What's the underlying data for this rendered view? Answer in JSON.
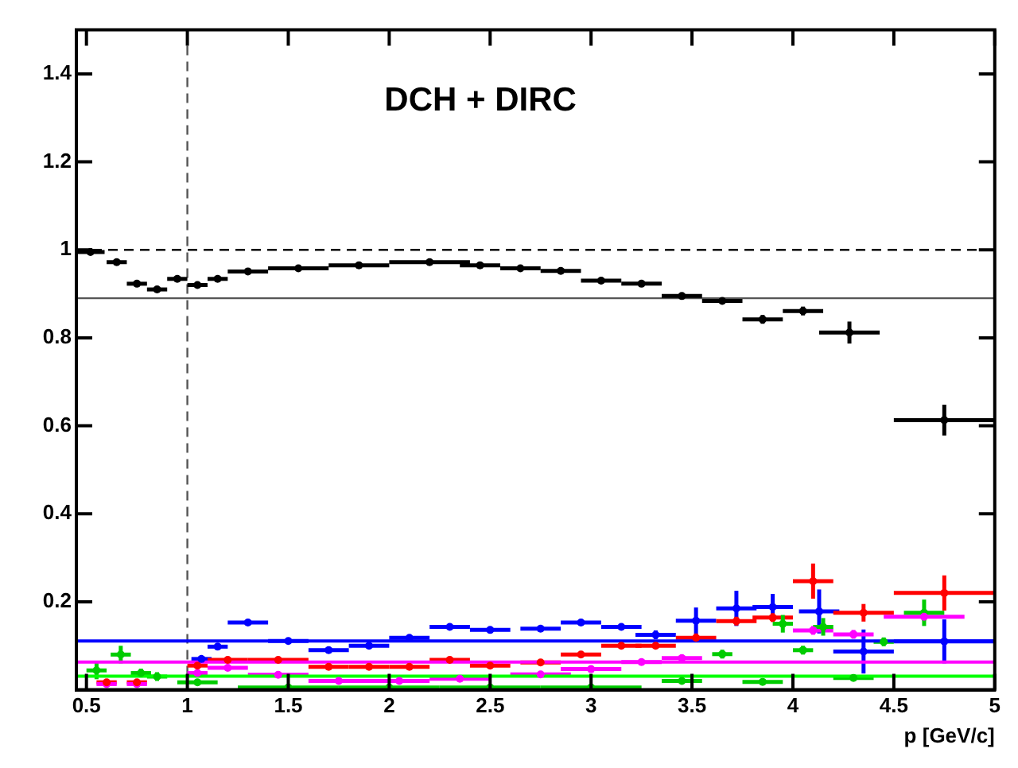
{
  "chart_data": {
    "type": "scatter",
    "title": "DCH + DIRC",
    "xlabel": "p [GeV/c]",
    "xlim": [
      0.45,
      5
    ],
    "ylim": [
      0,
      1.5
    ],
    "xticks": [
      0.5,
      1,
      1.5,
      2,
      2.5,
      3,
      3.5,
      4,
      4.5,
      5
    ],
    "yticks": [
      0.2,
      0.4,
      0.6,
      0.8,
      1,
      1.2,
      1.4
    ],
    "grid": false,
    "legend": false,
    "marker": "circle",
    "ref_lines": [
      {
        "axis": "y",
        "value": 1,
        "line_style": "dashed",
        "color": "#000000"
      },
      {
        "axis": "y",
        "value": 0.89,
        "line_style": "solid",
        "color": "#555555"
      },
      {
        "axis": "x",
        "value": 1,
        "line_style": "dashed",
        "color": "#555555"
      }
    ],
    "series": [
      {
        "color": "#000000",
        "x": [
          0.52,
          0.65,
          0.75,
          0.85,
          0.95,
          1.05,
          1.15,
          1.3,
          1.55,
          1.85,
          2.2,
          2.45,
          2.65,
          2.85,
          3.05,
          3.25,
          3.45,
          3.65,
          3.85,
          4.05,
          4.28,
          4.75
        ],
        "values": [
          0.995,
          0.972,
          0.923,
          0.91,
          0.934,
          0.92,
          0.934,
          0.951,
          0.958,
          0.965,
          0.972,
          0.965,
          0.958,
          0.952,
          0.93,
          0.923,
          0.895,
          0.884,
          0.842,
          0.861,
          0.812,
          0.613
        ],
        "xerrors": [
          0.07,
          0.05,
          0.05,
          0.05,
          0.05,
          0.05,
          0.05,
          0.1,
          0.15,
          0.15,
          0.2,
          0.1,
          0.1,
          0.1,
          0.1,
          0.1,
          0.1,
          0.1,
          0.1,
          0.1,
          0.15,
          0.25
        ],
        "errors": [
          0.005,
          0.005,
          0.005,
          0.005,
          0.005,
          0.005,
          0.005,
          0.005,
          0.005,
          0.005,
          0.005,
          0.005,
          0.005,
          0.005,
          0.005,
          0.005,
          0.005,
          0.005,
          0.01,
          0.01,
          0.025,
          0.035
        ]
      },
      {
        "color": "#0000ff",
        "x": [
          1.07,
          1.15,
          1.3,
          1.5,
          1.7,
          1.9,
          2.1,
          2.3,
          2.5,
          2.75,
          2.95,
          3.15,
          3.32,
          3.52,
          3.72,
          3.9,
          4.13,
          4.35,
          4.75
        ],
        "values": [
          0.07,
          0.098,
          0.153,
          0.111,
          0.09,
          0.1,
          0.118,
          0.143,
          0.136,
          0.139,
          0.153,
          0.143,
          0.125,
          0.157,
          0.185,
          0.188,
          0.178,
          0.087,
          0.11
        ],
        "xerrors": [
          0.05,
          0.05,
          0.1,
          0.1,
          0.1,
          0.1,
          0.1,
          0.1,
          0.1,
          0.1,
          0.1,
          0.1,
          0.1,
          0.1,
          0.1,
          0.1,
          0.1,
          0.15,
          0.25
        ],
        "errors": [
          0.005,
          0.005,
          0.005,
          0.005,
          0.005,
          0.005,
          0.005,
          0.005,
          0.005,
          0.005,
          0.005,
          0.005,
          0.01,
          0.03,
          0.04,
          0.03,
          0.05,
          0.05,
          0.05
        ]
      },
      {
        "color": "#ff0000",
        "x": [
          0.6,
          0.75,
          1.05,
          1.2,
          1.45,
          1.7,
          1.9,
          2.1,
          2.3,
          2.5,
          2.75,
          2.95,
          3.15,
          3.32,
          3.52,
          3.72,
          3.9,
          4.1,
          4.35,
          4.75
        ],
        "values": [
          0.017,
          0.017,
          0.055,
          0.068,
          0.068,
          0.052,
          0.052,
          0.052,
          0.068,
          0.055,
          0.062,
          0.08,
          0.1,
          0.1,
          0.118,
          0.156,
          0.164,
          0.247,
          0.175,
          0.22
        ],
        "xerrors": [
          0.05,
          0.05,
          0.05,
          0.1,
          0.15,
          0.1,
          0.1,
          0.1,
          0.1,
          0.1,
          0.1,
          0.1,
          0.1,
          0.1,
          0.1,
          0.1,
          0.1,
          0.1,
          0.15,
          0.25
        ],
        "errors": [
          0.005,
          0.005,
          0.005,
          0.005,
          0.005,
          0.005,
          0.005,
          0.005,
          0.005,
          0.005,
          0.005,
          0.005,
          0.005,
          0.005,
          0.01,
          0.01,
          0.01,
          0.04,
          0.02,
          0.04
        ]
      },
      {
        "color": "#ff00ff",
        "x": [
          0.6,
          0.75,
          1.05,
          1.2,
          1.45,
          1.75,
          2.05,
          2.35,
          2.75,
          3.0,
          3.25,
          3.45,
          4.1,
          4.3,
          4.65
        ],
        "values": [
          0.013,
          0.013,
          0.038,
          0.05,
          0.034,
          0.02,
          0.02,
          0.025,
          0.035,
          0.047,
          0.063,
          0.072,
          0.135,
          0.126,
          0.166
        ],
        "xerrors": [
          0.05,
          0.05,
          0.05,
          0.1,
          0.15,
          0.15,
          0.15,
          0.15,
          0.15,
          0.15,
          0.1,
          0.1,
          0.1,
          0.1,
          0.2
        ],
        "errors": [
          0.005,
          0.005,
          0.005,
          0.005,
          0.005,
          0.005,
          0.005,
          0.005,
          0.005,
          0.005,
          0.005,
          0.005,
          0.01,
          0.01,
          0.01
        ]
      },
      {
        "color": "#00cc00",
        "x": [
          0.55,
          0.67,
          0.77,
          0.85,
          1.05,
          1.5,
          2.0,
          2.5,
          3.0,
          3.45,
          3.65,
          3.85,
          3.95,
          4.05,
          4.15,
          4.3,
          4.45,
          4.65
        ],
        "values": [
          0.044,
          0.08,
          0.038,
          0.03,
          0.017,
          0.005,
          0.005,
          0.005,
          0.005,
          0.02,
          0.081,
          0.018,
          0.15,
          0.09,
          0.143,
          0.027,
          0.109,
          0.175
        ],
        "xerrors": [
          0.05,
          0.05,
          0.05,
          0.05,
          0.1,
          0.25,
          0.25,
          0.25,
          0.25,
          0.1,
          0.05,
          0.1,
          0.05,
          0.05,
          0.05,
          0.1,
          0.05,
          0.1
        ],
        "errors": [
          0.02,
          0.02,
          0.01,
          0.01,
          0.005,
          0.005,
          0.005,
          0.005,
          0.005,
          0.005,
          0.01,
          0.005,
          0.02,
          0.01,
          0.02,
          0.005,
          0.01,
          0.03
        ]
      },
      {
        "type": "line",
        "marker": "none",
        "color": "#0000ff",
        "x": [
          0.45,
          5
        ],
        "values": [
          0.111,
          0.111
        ]
      },
      {
        "type": "line",
        "marker": "none",
        "color": "#ff00ff",
        "x": [
          0.45,
          5
        ],
        "values": [
          0.063,
          0.063
        ]
      },
      {
        "type": "line",
        "marker": "none",
        "color": "#00ff00",
        "x": [
          0.45,
          5
        ],
        "values": [
          0.031,
          0.031
        ]
      }
    ]
  }
}
